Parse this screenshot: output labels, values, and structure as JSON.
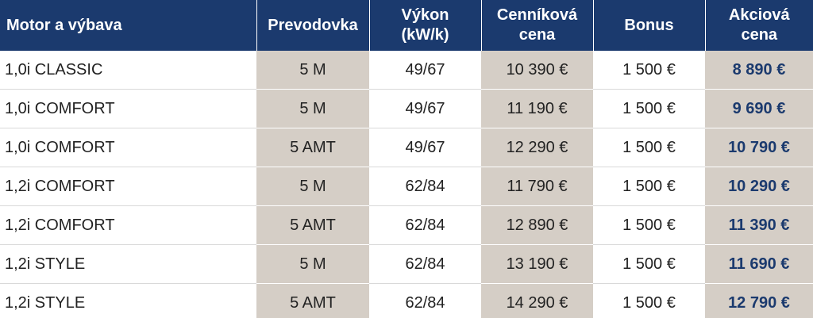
{
  "table": {
    "header": [
      [
        "Motor a výbava"
      ],
      [
        "Prevodovka"
      ],
      [
        "Výkon",
        "(kW/k)"
      ],
      [
        "Cenníková",
        "cena"
      ],
      [
        "Bonus"
      ],
      [
        "Akciová",
        "cena"
      ]
    ],
    "rows": [
      [
        "1,0i CLASSIC",
        "5 M",
        "49/67",
        "10 390 €",
        "1 500 €",
        "8 890 €"
      ],
      [
        "1,0i COMFORT",
        "5 M",
        "49/67",
        "11 190 €",
        "1 500 €",
        "9 690 €"
      ],
      [
        "1,0i COMFORT",
        "5 AMT",
        "49/67",
        "12 290 €",
        "1 500 €",
        "10 790 €"
      ],
      [
        "1,2i COMFORT",
        "5 M",
        "62/84",
        "11 790 €",
        "1 500 €",
        "10 290 €"
      ],
      [
        "1,2i COMFORT",
        "5 AMT",
        "62/84",
        "12 890 €",
        "1 500 €",
        "11 390 €"
      ],
      [
        "1,2i STYLE",
        "5 M",
        "62/84",
        "13 190 €",
        "1 500 €",
        "11 690 €"
      ],
      [
        "1,2i STYLE",
        "5 AMT",
        "62/84",
        "14 290 €",
        "1 500 €",
        "12 790 €"
      ]
    ]
  }
}
